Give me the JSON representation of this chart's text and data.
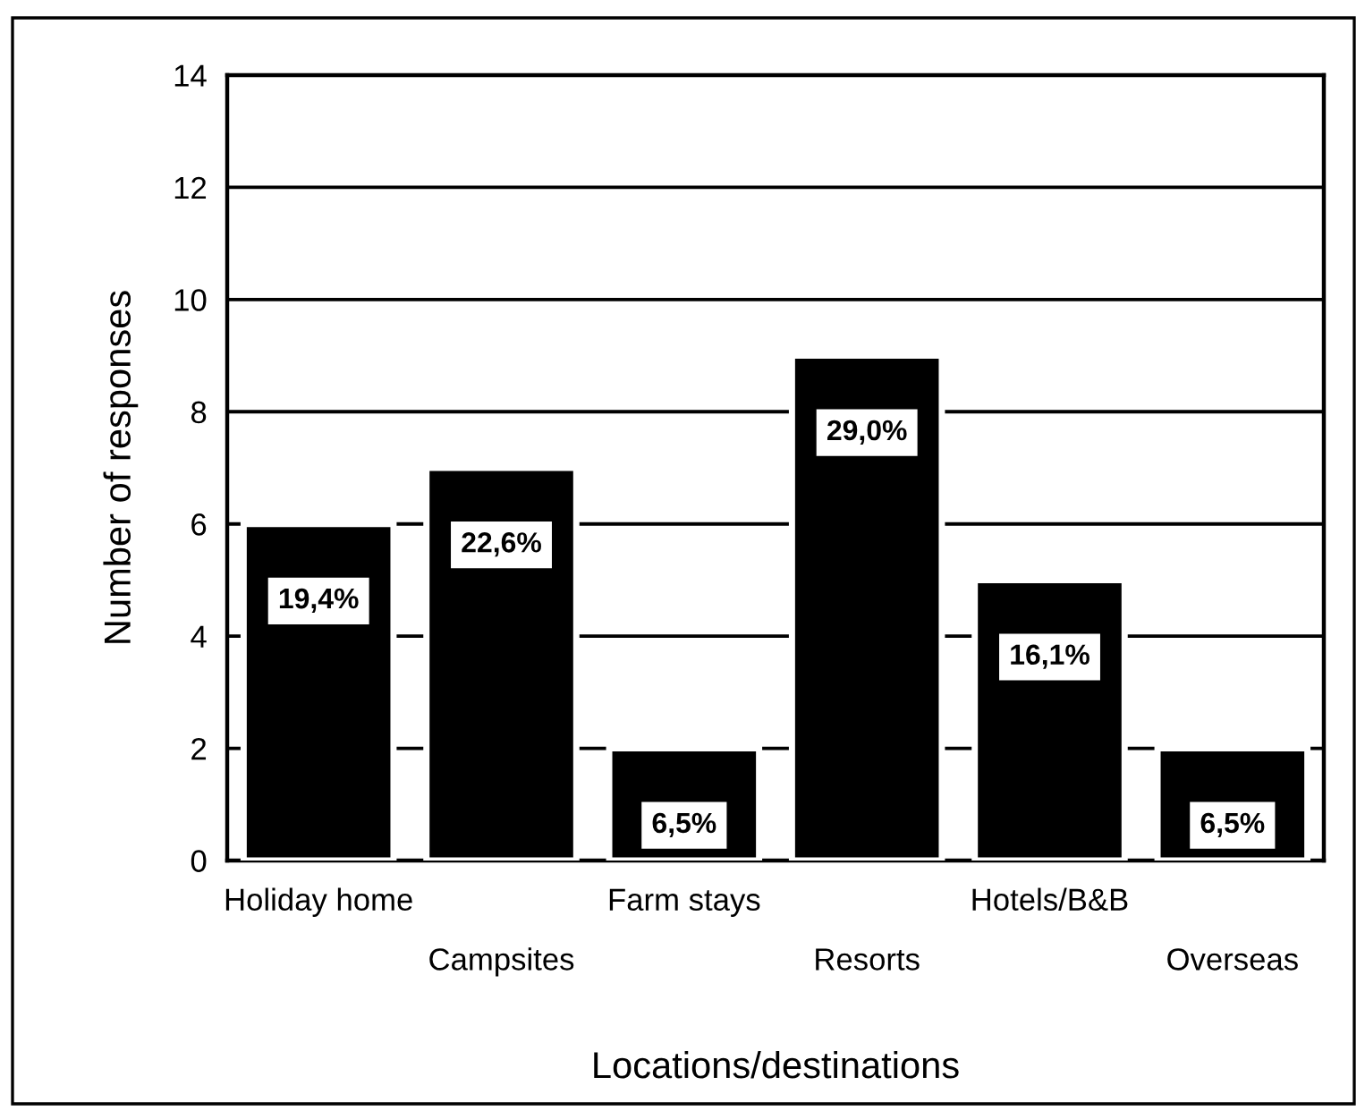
{
  "chart_data": {
    "type": "bar",
    "xlabel": "Locations/destinations",
    "ylabel": "Number of responses",
    "categories": [
      "Holiday home",
      "Campsites",
      "Farm stays",
      "Resorts",
      "Hotels/B&B",
      "Overseas"
    ],
    "values": [
      6,
      7,
      2,
      9,
      5,
      2
    ],
    "color": "#000000",
    "annotations": [
      {
        "text": "19,4%",
        "x": "Holiday home",
        "y": 6
      },
      {
        "text": "22,6%",
        "x": "Campsites",
        "y": 7
      },
      {
        "text": "6,5%",
        "x": "Farm stays",
        "y": 2
      },
      {
        "text": "29,0%",
        "x": "Resorts",
        "y": 9
      },
      {
        "text": "16,1%",
        "x": "Hotels/B&B",
        "y": 5
      },
      {
        "text": "6,5%",
        "x": "Overseas",
        "y": 2
      }
    ],
    "ylim": [
      0,
      14
    ],
    "yticks": [
      0,
      2,
      4,
      6,
      8,
      10,
      12,
      14
    ],
    "grid": "y"
  }
}
